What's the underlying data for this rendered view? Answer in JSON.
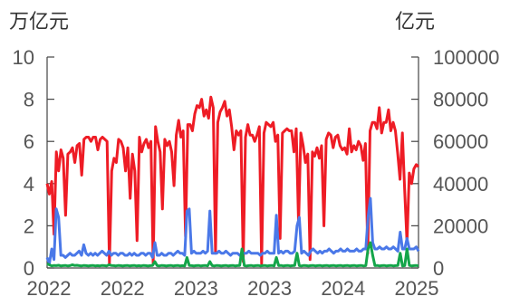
{
  "chart_data": {
    "type": "line",
    "left_axis": {
      "unit": "万亿元",
      "ticks": [
        "0",
        "2",
        "4",
        "6",
        "8",
        "10"
      ],
      "range": [
        0,
        10
      ]
    },
    "right_axis": {
      "unit": "亿元",
      "ticks": [
        "0",
        "20000",
        "40000",
        "60000",
        "80000",
        "100000"
      ],
      "range": [
        0,
        100000
      ]
    },
    "x_axis": {
      "tick_labels": [
        "2022",
        "2022",
        "2023",
        "2023",
        "2024",
        "2025"
      ],
      "range": [
        0,
        160
      ]
    },
    "grid": false,
    "legend": "none",
    "series": [
      {
        "color": "#ee1c25",
        "axis": "left",
        "values": [
          4.0,
          3.5,
          4.1,
          1.6,
          5.5,
          4.6,
          5.6,
          5.2,
          2.5,
          5.4,
          5.5,
          5.7,
          5.0,
          5.8,
          5.9,
          4.4,
          6.1,
          6.2,
          6.2,
          6.0,
          6.2,
          6.2,
          5.6,
          6.1,
          6.2,
          6.1,
          6.0,
          0.2,
          4.6,
          5.2,
          5.0,
          6.1,
          6.0,
          5.7,
          4.6,
          5.7,
          3.3,
          5.4,
          4.6,
          1.3,
          6.2,
          5.5,
          5.9,
          6.1,
          5.7,
          6.0,
          0.2,
          6.7,
          6.0,
          5.5,
          2.8,
          6.1,
          5.8,
          6.0,
          5.5,
          3.9,
          6.3,
          7.0,
          6.2,
          6.5,
          1.5,
          6.8,
          6.8,
          6.5,
          7.3,
          7.7,
          7.6,
          8.0,
          7.2,
          7.5,
          7.1,
          8.1,
          7.6,
          0.7,
          6.9,
          7.4,
          7.6,
          7.9,
          7.2,
          7.5,
          6.7,
          5.6,
          6.5,
          6.3,
          6.5,
          0.3,
          6.2,
          6.8,
          6.3,
          6.3,
          6.0,
          6.3,
          6.7,
          0.2,
          6.4,
          6.9,
          6.8,
          6.7,
          6.9,
          6.0,
          6.3,
          1.4,
          6.4,
          6.5,
          6.6,
          6.5,
          6.5,
          5.5,
          6.6,
          2.1,
          6.4,
          5.8,
          5.0,
          5.4,
          0.4,
          5.5,
          5.3,
          5.7,
          5.2,
          5.8,
          2.0,
          6.1,
          6.4,
          6.3,
          5.7,
          6.2,
          6.3,
          5.8,
          5.6,
          5.7,
          5.4,
          6.6,
          5.5,
          5.8,
          5.6,
          6.0,
          5.8,
          5.1,
          5.9,
          0.7,
          6.5,
          6.9,
          6.9,
          6.6,
          7.6,
          6.4,
          6.9,
          6.9,
          7.5,
          6.5,
          6.9,
          6.5,
          5.4,
          4.2,
          6.4,
          3.7,
          1.2,
          4.5,
          4.0,
          4.7,
          4.9,
          4.8
        ]
      },
      {
        "color": "#4a78e8",
        "axis": "right",
        "values": [
          5000,
          2000,
          9000,
          4000,
          28000,
          24000,
          6000,
          6000,
          5000,
          6000,
          7000,
          6000,
          6000,
          7000,
          8000,
          6000,
          11000,
          7000,
          6000,
          7000,
          6000,
          7000,
          6000,
          7000,
          8000,
          7000,
          6000,
          8000,
          6000,
          7000,
          7000,
          6000,
          7000,
          7000,
          6000,
          6000,
          7000,
          6000,
          7000,
          6000,
          6000,
          7000,
          7000,
          6000,
          7000,
          7000,
          5000,
          12000,
          6000,
          6000,
          7000,
          6000,
          6000,
          7000,
          7000,
          6000,
          7000,
          8000,
          7000,
          7000,
          6000,
          27000,
          28000,
          7000,
          8000,
          7000,
          7000,
          7000,
          8000,
          7000,
          8000,
          27000,
          7000,
          7000,
          7000,
          8000,
          7000,
          7000,
          8000,
          7000,
          6000,
          7000,
          7000,
          7000,
          6000,
          7000,
          7000,
          7000,
          8000,
          7000,
          7000,
          7000,
          7000,
          6000,
          7000,
          7000,
          8000,
          7000,
          7000,
          7000,
          25000,
          7000,
          8000,
          7000,
          8000,
          8000,
          7000,
          7000,
          8000,
          20000,
          24000,
          7000,
          8000,
          7000,
          6000,
          8000,
          9000,
          8000,
          7000,
          8000,
          7000,
          8000,
          8000,
          9000,
          8000,
          7000,
          8000,
          8000,
          9000,
          8000,
          8000,
          9000,
          8000,
          8000,
          8000,
          9000,
          8000,
          8000,
          9000,
          9000,
          24000,
          33000,
          12000,
          9000,
          9000,
          10000,
          9000,
          9000,
          10000,
          9000,
          9000,
          10000,
          9000,
          8000,
          17000,
          9000,
          9000,
          14000,
          9000,
          9000,
          9000,
          10000,
          8000
        ]
      },
      {
        "color": "#14a54a",
        "axis": "right",
        "values": [
          2000,
          1500,
          1000,
          1200,
          1100,
          1300,
          1000,
          1100,
          1200,
          1000,
          1100,
          1500,
          1200,
          1300,
          1100,
          1000,
          1200,
          1100,
          1000,
          1100,
          1200,
          1000,
          1100,
          1000,
          1200,
          1100,
          1000,
          1500,
          1200,
          1100,
          1000,
          1200,
          1100,
          1000,
          1100,
          1200,
          1000,
          1100,
          1200,
          1000,
          1100,
          1000,
          1200,
          1100,
          1000,
          1100,
          1200,
          3000,
          1100,
          1000,
          1200,
          1100,
          1000,
          1100,
          1200,
          1000,
          1100,
          1200,
          1000,
          1100,
          1000,
          5000,
          1200,
          1100,
          1000,
          1100,
          1200,
          1000,
          1100,
          1200,
          1000,
          3000,
          1100,
          1000,
          1200,
          1100,
          1000,
          1100,
          1200,
          1000,
          1100,
          1200,
          1000,
          1100,
          1200,
          9000,
          1100,
          1000,
          1100,
          1200,
          1000,
          1100,
          1200,
          1000,
          1100,
          1200,
          1000,
          1100,
          1200,
          1000,
          5000,
          1100,
          1200,
          1000,
          1100,
          1200,
          1000,
          1100,
          1200,
          7000,
          1100,
          1000,
          1200,
          1100,
          1000,
          1100,
          1200,
          1000,
          1100,
          1200,
          1000,
          1100,
          1200,
          1000,
          1100,
          1200,
          1000,
          1100,
          1200,
          1000,
          1100,
          1200,
          1000,
          1100,
          1200,
          1000,
          1100,
          1200,
          1000,
          1100,
          9000,
          12000,
          6000,
          1100,
          1200,
          1000,
          1100,
          1200,
          1000,
          1100,
          1200,
          1000,
          1100,
          1200,
          7000,
          1000,
          1100,
          9000,
          1200,
          1000,
          1100,
          1200,
          1000
        ]
      }
    ]
  }
}
